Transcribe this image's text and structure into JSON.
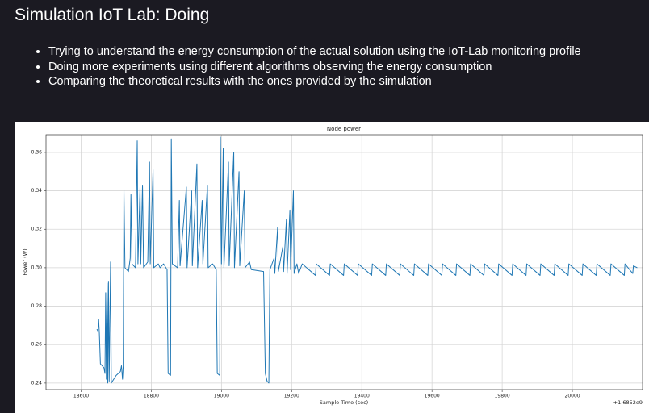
{
  "header": {
    "title": "Simulation IoT Lab: Doing"
  },
  "bullets": [
    "Trying to understand the energy consumption of the actual solution using the IoT-Lab monitoring profile",
    "Doing more experiments using different algorithms observing the energy consumption",
    "Comparing the theoretical results with the ones provided by the simulation"
  ],
  "chart_data": {
    "type": "line",
    "title": "Node power",
    "x_label": "Sample Time (sec)",
    "y_label": "Power (W)",
    "x_offset_label": "+1.6852e9",
    "grid": true,
    "xlim": [
      18500,
      20200
    ],
    "ylim": [
      0.2366,
      0.3692
    ],
    "xticks": [
      18600,
      18800,
      19000,
      19200,
      19400,
      19600,
      19800,
      20000
    ],
    "yticks": [
      0.24,
      0.26,
      0.28,
      {
        "value": 0.3,
        "label": "0.30"
      },
      0.32,
      0.34,
      0.36
    ],
    "x": [
      18645,
      18648,
      18650,
      18652,
      18655,
      18665,
      18668,
      18670,
      18672,
      18674,
      18676,
      18678,
      18680,
      18684,
      18686,
      18700,
      18712,
      18715,
      18718,
      18720,
      18722,
      18725,
      18735,
      18740,
      18742,
      18745,
      18755,
      18760,
      18762,
      18768,
      18770,
      18775,
      18778,
      18790,
      18795,
      18797,
      18805,
      18807,
      18820,
      18825,
      18835,
      18845,
      18848,
      18855,
      18857,
      18860,
      18875,
      18880,
      18882,
      18900,
      18902,
      18915,
      18917,
      18930,
      18932,
      18945,
      18947,
      18960,
      18962,
      18975,
      18985,
      18988,
      18995,
      18997,
      19000,
      19005,
      19007,
      19020,
      19022,
      19035,
      19037,
      19050,
      19052,
      19065,
      19067,
      19080,
      19085,
      19120,
      19125,
      19130,
      19135,
      19138,
      19150,
      19152,
      19160,
      19162,
      19175,
      19177,
      19185,
      19187,
      19195,
      19197,
      19205,
      19207,
      19215,
      19220,
      19230,
      19268,
      19270,
      19308,
      19310,
      19348,
      19350,
      19388,
      19390,
      19428,
      19430,
      19468,
      19470,
      19508,
      19510,
      19548,
      19550,
      19588,
      19590,
      19628,
      19630,
      19668,
      19670,
      19708,
      19710,
      19748,
      19750,
      19788,
      19790,
      19828,
      19830,
      19868,
      19870,
      19908,
      19910,
      19948,
      19950,
      19988,
      19990,
      20028,
      20030,
      20068,
      20070,
      20108,
      20110,
      20148,
      20150,
      20172,
      20174,
      20185
    ],
    "series": [
      {
        "name": "Node power",
        "color": "#1f77b4",
        "values": [
          0.268,
          0.267,
          0.273,
          0.266,
          0.25,
          0.248,
          0.245,
          0.287,
          0.242,
          0.292,
          0.24,
          0.293,
          0.241,
          0.303,
          0.24,
          0.244,
          0.246,
          0.249,
          0.242,
          0.249,
          0.341,
          0.3,
          0.298,
          0.305,
          0.338,
          0.302,
          0.3,
          0.366,
          0.302,
          0.342,
          0.302,
          0.343,
          0.3,
          0.303,
          0.355,
          0.302,
          0.351,
          0.3,
          0.302,
          0.3,
          0.302,
          0.299,
          0.245,
          0.244,
          0.367,
          0.302,
          0.3,
          0.335,
          0.301,
          0.342,
          0.3,
          0.34,
          0.301,
          0.354,
          0.3,
          0.335,
          0.302,
          0.343,
          0.3,
          0.302,
          0.299,
          0.245,
          0.244,
          0.368,
          0.302,
          0.362,
          0.3,
          0.355,
          0.301,
          0.36,
          0.3,
          0.35,
          0.301,
          0.34,
          0.3,
          0.303,
          0.299,
          0.298,
          0.245,
          0.241,
          0.24,
          0.299,
          0.305,
          0.297,
          0.321,
          0.298,
          0.311,
          0.298,
          0.325,
          0.297,
          0.33,
          0.299,
          0.34,
          0.297,
          0.302,
          0.297,
          0.302,
          0.296,
          0.302,
          0.296,
          0.302,
          0.296,
          0.302,
          0.296,
          0.302,
          0.296,
          0.302,
          0.296,
          0.302,
          0.296,
          0.302,
          0.296,
          0.302,
          0.296,
          0.302,
          0.296,
          0.302,
          0.296,
          0.302,
          0.296,
          0.302,
          0.296,
          0.302,
          0.296,
          0.302,
          0.296,
          0.302,
          0.296,
          0.302,
          0.296,
          0.302,
          0.296,
          0.302,
          0.296,
          0.302,
          0.296,
          0.302,
          0.296,
          0.302,
          0.296,
          0.302,
          0.296,
          0.302,
          0.297,
          0.301,
          0.3
        ]
      }
    ]
  }
}
